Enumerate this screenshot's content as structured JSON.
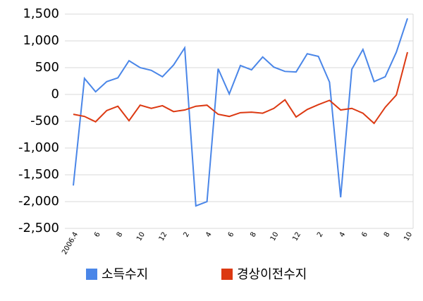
{
  "chart_data": {
    "type": "line",
    "categories": [
      "2006.4",
      null,
      "6",
      null,
      "8",
      null,
      "10",
      null,
      "12",
      null,
      "2",
      null,
      "4",
      null,
      "6",
      null,
      "8",
      null,
      "10",
      null,
      "12",
      null,
      "2",
      null,
      "4",
      null,
      "6",
      null,
      "8",
      null,
      "10"
    ],
    "series": [
      {
        "name": "소득수지",
        "color": "#4a86e8",
        "values": [
          -1700,
          300,
          50,
          240,
          310,
          630,
          500,
          450,
          330,
          550,
          870,
          -2080,
          -2000,
          480,
          10,
          540,
          460,
          700,
          510,
          430,
          420,
          760,
          710,
          230,
          -1920,
          470,
          840,
          240,
          330,
          790,
          1420
        ]
      },
      {
        "name": "경상이전수지",
        "color": "#dc3912",
        "values": [
          -370,
          -410,
          -510,
          -300,
          -220,
          -490,
          -200,
          -260,
          -210,
          -320,
          -290,
          -220,
          -200,
          -370,
          -410,
          -340,
          -330,
          -350,
          -260,
          -100,
          -420,
          -280,
          -190,
          -110,
          -290,
          -260,
          -350,
          -540,
          -240,
          -10,
          790
        ]
      }
    ],
    "ylim": [
      -2500,
      1500
    ],
    "yticks": [
      {
        "value": -2500,
        "label": "-2,500"
      },
      {
        "value": -2000,
        "label": "-2,000"
      },
      {
        "value": -1500,
        "label": "-1,500"
      },
      {
        "value": -1000,
        "label": "-1,000"
      },
      -500,
      0,
      500,
      {
        "value": 1000,
        "label": "1,000"
      },
      {
        "value": 1500,
        "label": "1,500"
      }
    ],
    "grid": true,
    "legend": "bottom"
  }
}
